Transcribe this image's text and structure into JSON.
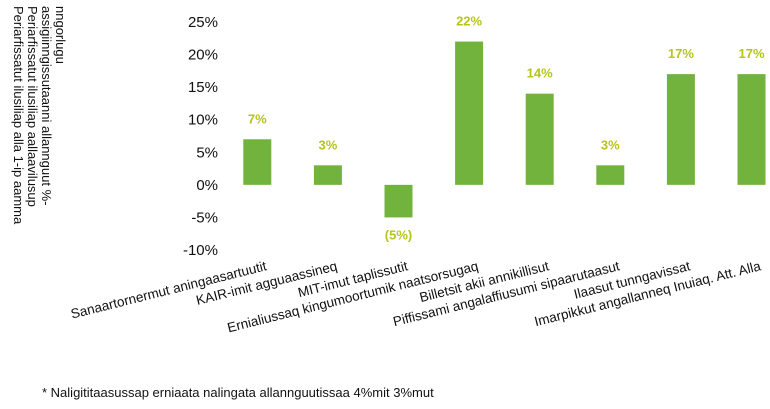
{
  "chart_data": {
    "type": "bar",
    "ylabel": [
      "Periarfissatut ilusiliap alla 1-ip aamma",
      "Periarfissatut ilusiliap aallaavilusup",
      "assigiinngissutaanni allannguut %-",
      "nngorlugu"
    ],
    "categories": [
      "Sanaartornermut aningaasartuutit",
      "KAIR-imit agguaassineq",
      "MIT-imut taplissutit",
      "Ernialiussaq kingumoortumik naatsorsugaq",
      "Billetsit akii annikillisut",
      "Piffissami angalaffiusumi sipaarutaasut",
      "Ilaasut tunngavissat",
      "Imarpikkut angallanneq Inuiaq. Att. Alla"
    ],
    "values": [
      7,
      3,
      -5,
      22,
      14,
      3,
      17,
      17
    ],
    "value_labels": [
      "7%",
      "3%",
      "(5%)",
      "22%",
      "14%",
      "3%",
      "17%",
      "17%"
    ],
    "color": "#72b33e",
    "label_color": "#b6c41c",
    "ylim": [
      -10,
      25
    ],
    "yticks": [
      {
        "value": 25,
        "label": "25%"
      },
      {
        "value": 20,
        "label": "20%"
      },
      {
        "value": 15,
        "label": "15%"
      },
      {
        "value": 10,
        "label": "10%"
      },
      {
        "value": 5,
        "label": "5%"
      },
      {
        "value": 0,
        "label": "0%"
      },
      {
        "value": -5,
        "label": "-5%"
      },
      {
        "value": -10,
        "label": "-10%"
      }
    ],
    "grid": false,
    "footnote": "* Naligititaasussap erniaata nalingata allannguutissaa 4%mit 3%mut"
  }
}
